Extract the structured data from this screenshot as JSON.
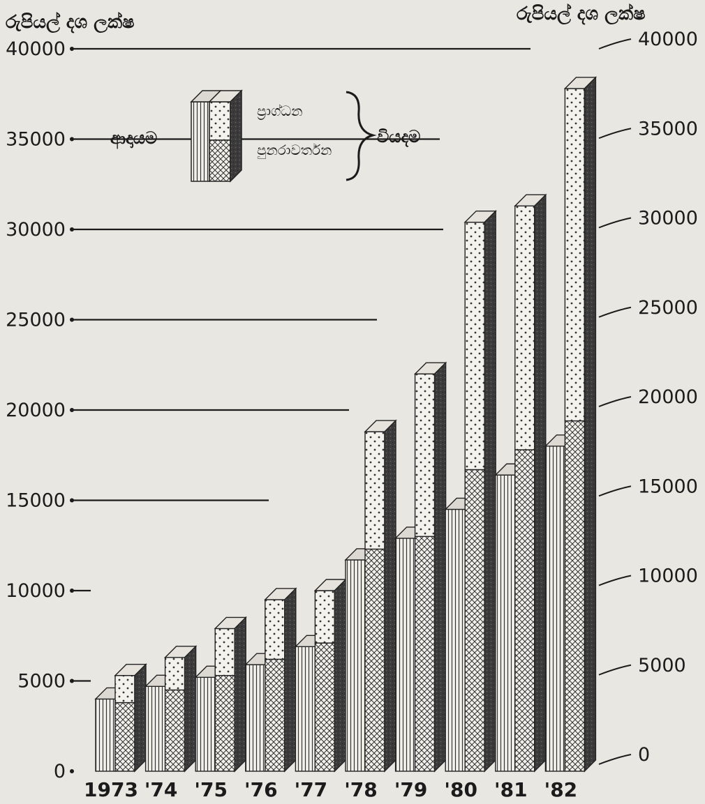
{
  "chart_data": {
    "type": "bar",
    "unit_label_left": "රුපියල් දශ ලක්ෂ",
    "unit_label_right": "රුපියල් දශ ලක්ෂ",
    "categories": [
      "1973",
      "'74",
      "'75",
      "'76",
      "'77",
      "'78",
      "'79",
      "'80",
      "'81",
      "'82"
    ],
    "y_ticks_left": [
      "0",
      "5000",
      "10000",
      "15000",
      "20000",
      "25000",
      "30000",
      "35000",
      "40000"
    ],
    "y_ticks_right": [
      "0",
      "5000",
      "10000",
      "15000",
      "20000",
      "25000",
      "30000",
      "35000",
      "40000"
    ],
    "ylim": [
      0,
      40000
    ],
    "series": [
      {
        "name": "ආදායම",
        "values": [
          4000,
          4700,
          5200,
          5900,
          6900,
          11700,
          12900,
          14500,
          16400,
          18000
        ]
      },
      {
        "name": "පුනරාවර්තන",
        "values": [
          3800,
          4500,
          5300,
          6200,
          7100,
          12300,
          13000,
          16700,
          17800,
          19400
        ]
      },
      {
        "name": "ප්‍රාග්ධන",
        "values": [
          1500,
          1800,
          2600,
          3300,
          2900,
          6500,
          9000,
          13700,
          13500,
          18400
        ]
      }
    ],
    "stacked": "පුනරාවර්තන + ප්‍රාග්ධන",
    "legend": {
      "income_label": "ආදායම",
      "capital_label": "ප්‍රාග්ධන",
      "recurrent_label": "පුනරාවර්තන",
      "expenditure_label": "වියදම"
    },
    "legend_position": "top-left",
    "grid": false
  }
}
